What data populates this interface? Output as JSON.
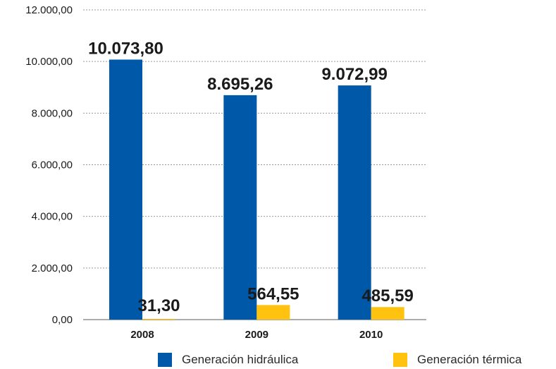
{
  "chart_data": {
    "type": "bar",
    "categories": [
      "2008",
      "2009",
      "2010"
    ],
    "series": [
      {
        "name": "Generación hidráulica",
        "color": "#0058A9",
        "values": [
          10073.8,
          8695.26,
          9072.99
        ],
        "labels": [
          "10.073,80",
          "8.695,26",
          "9.072,99"
        ]
      },
      {
        "name": "Generación térmica",
        "color": "#FFC20E",
        "values": [
          31.3,
          564.55,
          485.59
        ],
        "labels": [
          "31,30",
          "564,55",
          "485,59"
        ]
      }
    ],
    "ylim": [
      0,
      12000
    ],
    "yticks": [
      0,
      2000,
      4000,
      6000,
      8000,
      10000,
      12000
    ],
    "ytick_labels": [
      "0,00",
      "2.000,00",
      "4.000,00",
      "6.000,00",
      "8.000,00",
      "10.000,00",
      "12.000,00"
    ],
    "grid": "horizontal-dotted",
    "legend": "bottom",
    "title": "",
    "xlabel": "",
    "ylabel": ""
  }
}
